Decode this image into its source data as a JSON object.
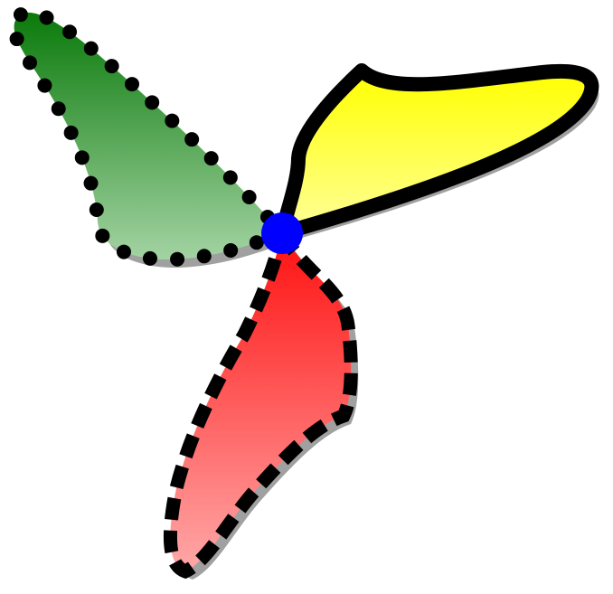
{
  "figure": {
    "kind": "three-petal shape illustration",
    "petals": [
      {
        "id": "green",
        "fill_color": "#0a7a0a",
        "fill_color_light": "#a3d3a3",
        "outline": "dotted"
      },
      {
        "id": "yellow",
        "fill_color": "#ffff00",
        "fill_color_light": "#ffff9a",
        "outline": "solid"
      },
      {
        "id": "red",
        "fill_color": "#ff1010",
        "fill_color_light": "#ffa8a8",
        "outline": "dashed"
      }
    ],
    "center_dot_color": "#0000ff",
    "outline_color": "#000000",
    "shadow_color": "#a0a0a0"
  }
}
